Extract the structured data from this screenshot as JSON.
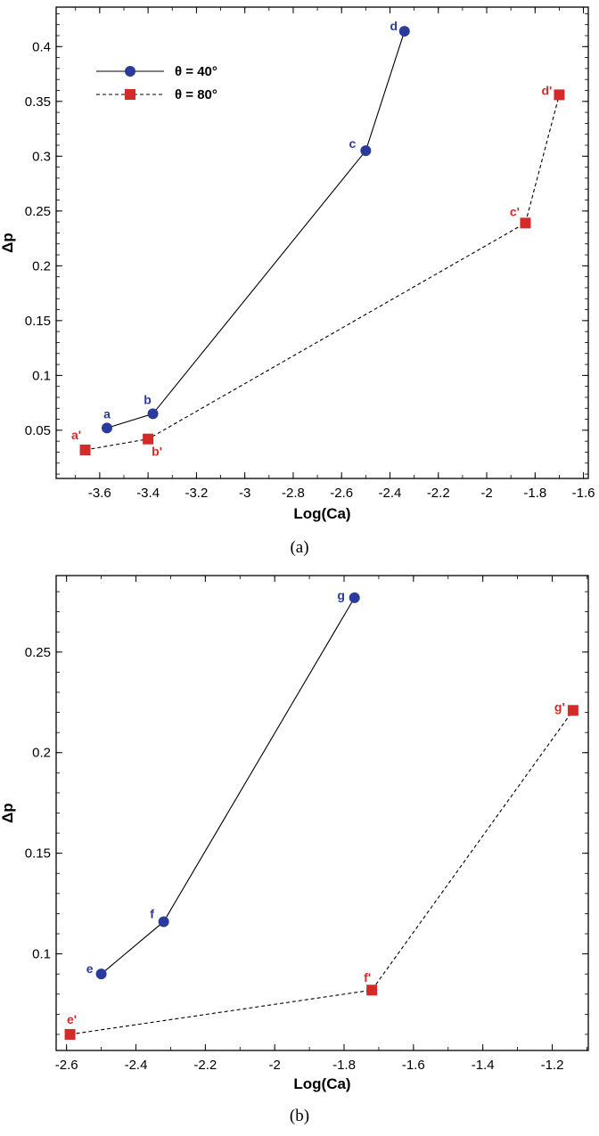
{
  "colors": {
    "blue": "#2B3B9B",
    "red": "#D42A2A",
    "axis": "#000000"
  },
  "chart_data": [
    {
      "type": "line",
      "panel": "(a)",
      "xlabel": "Log(Ca)",
      "ylabel": "Δp",
      "xlim": [
        -3.78,
        -1.58
      ],
      "ylim": [
        0.006,
        0.436
      ],
      "xticks": [
        -3.6,
        -3.4,
        -3.2,
        -3,
        -2.8,
        -2.6,
        -2.4,
        -2.2,
        -2,
        -1.8,
        -1.6
      ],
      "xtick_labels": [
        "-3.6",
        "-3.4",
        "-3.2",
        "-3",
        "-2.8",
        "-2.6",
        "-2.4",
        "-2.2",
        "-2",
        "-1.8",
        "-1.6"
      ],
      "yticks": [
        0.05,
        0.1,
        0.15,
        0.2,
        0.25,
        0.3,
        0.35,
        0.4
      ],
      "ytick_labels": [
        "0.05",
        "0.1",
        "0.15",
        "0.2",
        "0.25",
        "0.3",
        "0.35",
        "0.4"
      ],
      "legend": [
        {
          "text": "θ = 40°",
          "series": 0
        },
        {
          "text": "θ = 80°",
          "series": 1
        }
      ],
      "series": [
        {
          "name": "θ = 40°",
          "marker": "circle",
          "line": "solid",
          "x": [
            -3.57,
            -3.38,
            -2.5,
            -2.34
          ],
          "y": [
            0.052,
            0.065,
            0.305,
            0.414
          ],
          "labels": [
            "a",
            "b",
            "c",
            "d"
          ]
        },
        {
          "name": "θ = 80°",
          "marker": "square",
          "line": "dashed",
          "x": [
            -3.66,
            -3.4,
            -1.84,
            -1.7
          ],
          "y": [
            0.032,
            0.042,
            0.239,
            0.356
          ],
          "labels": [
            "a'",
            "b'",
            "c'",
            "d'"
          ]
        }
      ]
    },
    {
      "type": "line",
      "panel": "(b)",
      "xlabel": "Log(Ca)",
      "ylabel": "Δp",
      "xlim": [
        -2.63,
        -1.096
      ],
      "ylim": [
        0.052,
        0.288
      ],
      "xticks": [
        -2.6,
        -2.4,
        -2.2,
        -2,
        -1.8,
        -1.6,
        -1.4,
        -1.2
      ],
      "xtick_labels": [
        "-2.6",
        "-2.4",
        "-2.2",
        "-2",
        "-1.8",
        "-1.6",
        "-1.4",
        "-1.2"
      ],
      "yticks": [
        0.1,
        0.15,
        0.2,
        0.25
      ],
      "ytick_labels": [
        "0.1",
        "0.15",
        "0.2",
        "0.25"
      ],
      "series": [
        {
          "name": "θ = 40°",
          "marker": "circle",
          "line": "solid",
          "x": [
            -2.5,
            -2.32,
            -1.77
          ],
          "y": [
            0.09,
            0.116,
            0.277
          ],
          "labels": [
            "e",
            "f",
            "g"
          ]
        },
        {
          "name": "θ = 80°",
          "marker": "square",
          "line": "dashed",
          "x": [
            -2.59,
            -1.72,
            -1.14
          ],
          "y": [
            0.06,
            0.082,
            0.221
          ],
          "labels": [
            "e'",
            "f'",
            "g'"
          ]
        }
      ]
    }
  ]
}
